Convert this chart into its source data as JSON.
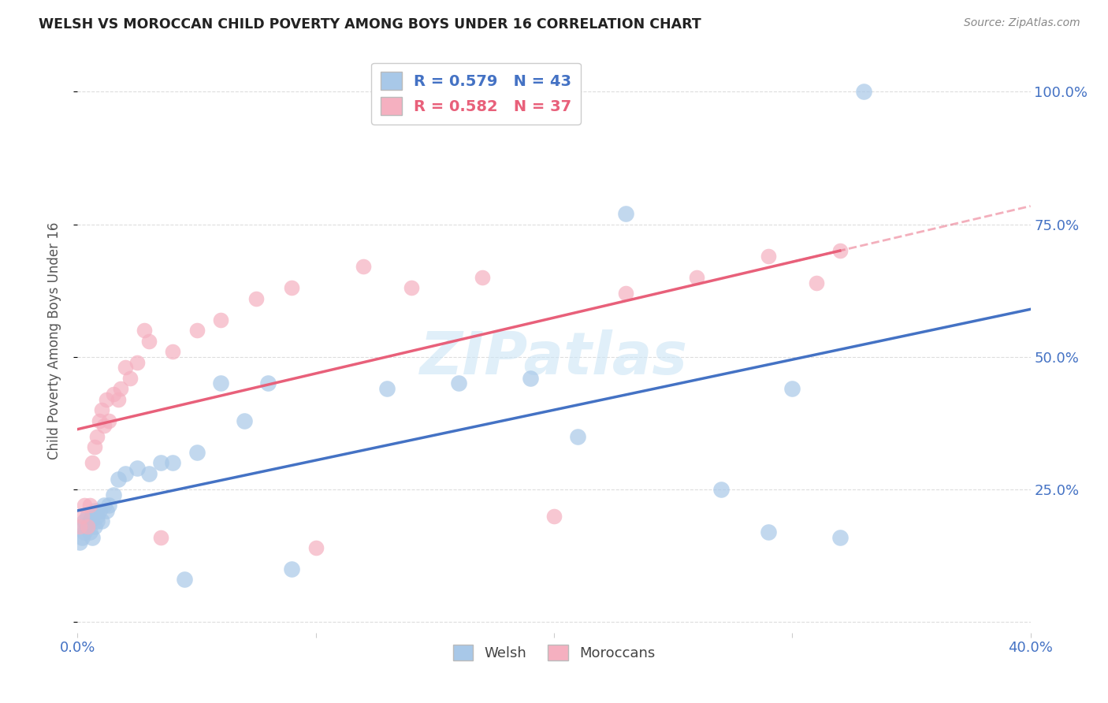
{
  "title": "WELSH VS MOROCCAN CHILD POVERTY AMONG BOYS UNDER 16 CORRELATION CHART",
  "source": "Source: ZipAtlas.com",
  "ylabel": "Child Poverty Among Boys Under 16",
  "xlim": [
    0.0,
    0.4
  ],
  "ylim": [
    -0.02,
    1.08
  ],
  "x_ticks": [
    0.0,
    0.1,
    0.2,
    0.3,
    0.4
  ],
  "x_tick_labels": [
    "0.0%",
    "",
    "",
    "",
    "40.0%"
  ],
  "y_ticks": [
    0.0,
    0.25,
    0.5,
    0.75,
    1.0
  ],
  "y_tick_labels": [
    "",
    "25.0%",
    "50.0%",
    "75.0%",
    "100.0%"
  ],
  "welsh_color": "#a8c8e8",
  "moroccan_color": "#f5b0c0",
  "welsh_line_color": "#4472c4",
  "moroccan_line_color": "#e8607a",
  "watermark": "ZIPatlas",
  "legend_r_welsh": "R = 0.579",
  "legend_n_welsh": "N = 43",
  "legend_r_moroccan": "R = 0.582",
  "legend_n_moroccan": "N = 37",
  "welsh_x": [
    0.001,
    0.002,
    0.002,
    0.003,
    0.003,
    0.004,
    0.004,
    0.005,
    0.005,
    0.006,
    0.006,
    0.007,
    0.007,
    0.008,
    0.008,
    0.009,
    0.01,
    0.011,
    0.012,
    0.013,
    0.015,
    0.017,
    0.02,
    0.025,
    0.03,
    0.035,
    0.04,
    0.045,
    0.05,
    0.06,
    0.07,
    0.08,
    0.09,
    0.13,
    0.16,
    0.19,
    0.21,
    0.23,
    0.27,
    0.29,
    0.3,
    0.32,
    0.33
  ],
  "welsh_y": [
    0.15,
    0.16,
    0.18,
    0.17,
    0.19,
    0.18,
    0.2,
    0.17,
    0.19,
    0.16,
    0.2,
    0.18,
    0.21,
    0.19,
    0.2,
    0.21,
    0.19,
    0.22,
    0.21,
    0.22,
    0.24,
    0.27,
    0.28,
    0.29,
    0.28,
    0.3,
    0.3,
    0.08,
    0.32,
    0.45,
    0.38,
    0.45,
    0.1,
    0.44,
    0.45,
    0.46,
    0.35,
    0.77,
    0.25,
    0.17,
    0.44,
    0.16,
    1.0
  ],
  "moroccan_x": [
    0.001,
    0.002,
    0.003,
    0.004,
    0.005,
    0.006,
    0.007,
    0.008,
    0.009,
    0.01,
    0.011,
    0.012,
    0.013,
    0.015,
    0.017,
    0.018,
    0.02,
    0.022,
    0.025,
    0.028,
    0.03,
    0.035,
    0.04,
    0.05,
    0.06,
    0.075,
    0.09,
    0.1,
    0.12,
    0.14,
    0.17,
    0.2,
    0.23,
    0.26,
    0.29,
    0.31,
    0.32
  ],
  "moroccan_y": [
    0.18,
    0.2,
    0.22,
    0.18,
    0.22,
    0.3,
    0.33,
    0.35,
    0.38,
    0.4,
    0.37,
    0.42,
    0.38,
    0.43,
    0.42,
    0.44,
    0.48,
    0.46,
    0.49,
    0.55,
    0.53,
    0.16,
    0.51,
    0.55,
    0.57,
    0.61,
    0.63,
    0.14,
    0.67,
    0.63,
    0.65,
    0.2,
    0.62,
    0.65,
    0.69,
    0.64,
    0.7
  ],
  "background_color": "#ffffff",
  "grid_color": "#dddddd"
}
